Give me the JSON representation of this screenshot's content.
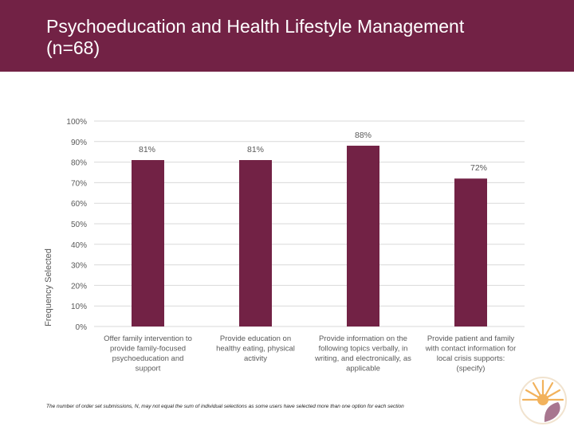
{
  "slide": {
    "title": "Psychoeducation and Health Lifestyle Management (n=68)",
    "footnote": "The number of order set submissions, N, may not equal the sum of individual selections as some users have selected more than one option for each section"
  },
  "colors": {
    "header_bg": "#722245",
    "bar": "#722245",
    "gridline": "#d9d9d9",
    "axis_text": "#595959"
  },
  "chart_data": {
    "type": "bar",
    "title": "",
    "xlabel": "",
    "ylabel": "Frequency Selected",
    "ylim": [
      0,
      100
    ],
    "yticks": [
      "0%",
      "10%",
      "20%",
      "30%",
      "40%",
      "50%",
      "60%",
      "70%",
      "80%",
      "90%",
      "100%"
    ],
    "categories": [
      [
        "Offer family intervention to",
        "provide family-focused",
        "psychoeducation and",
        "support"
      ],
      [
        "Provide education on",
        "healthy eating, physical",
        "activity"
      ],
      [
        "Provide information on the",
        "following topics verbally, in",
        "writing, and electronically, as",
        "applicable"
      ],
      [
        "Provide patient and family",
        "with contact information for",
        "local crisis supports:",
        "(specify)"
      ]
    ],
    "values": [
      81,
      81,
      88,
      72
    ],
    "data_labels": [
      "81%",
      "81%",
      "88%",
      "72%"
    ],
    "grid": true
  }
}
